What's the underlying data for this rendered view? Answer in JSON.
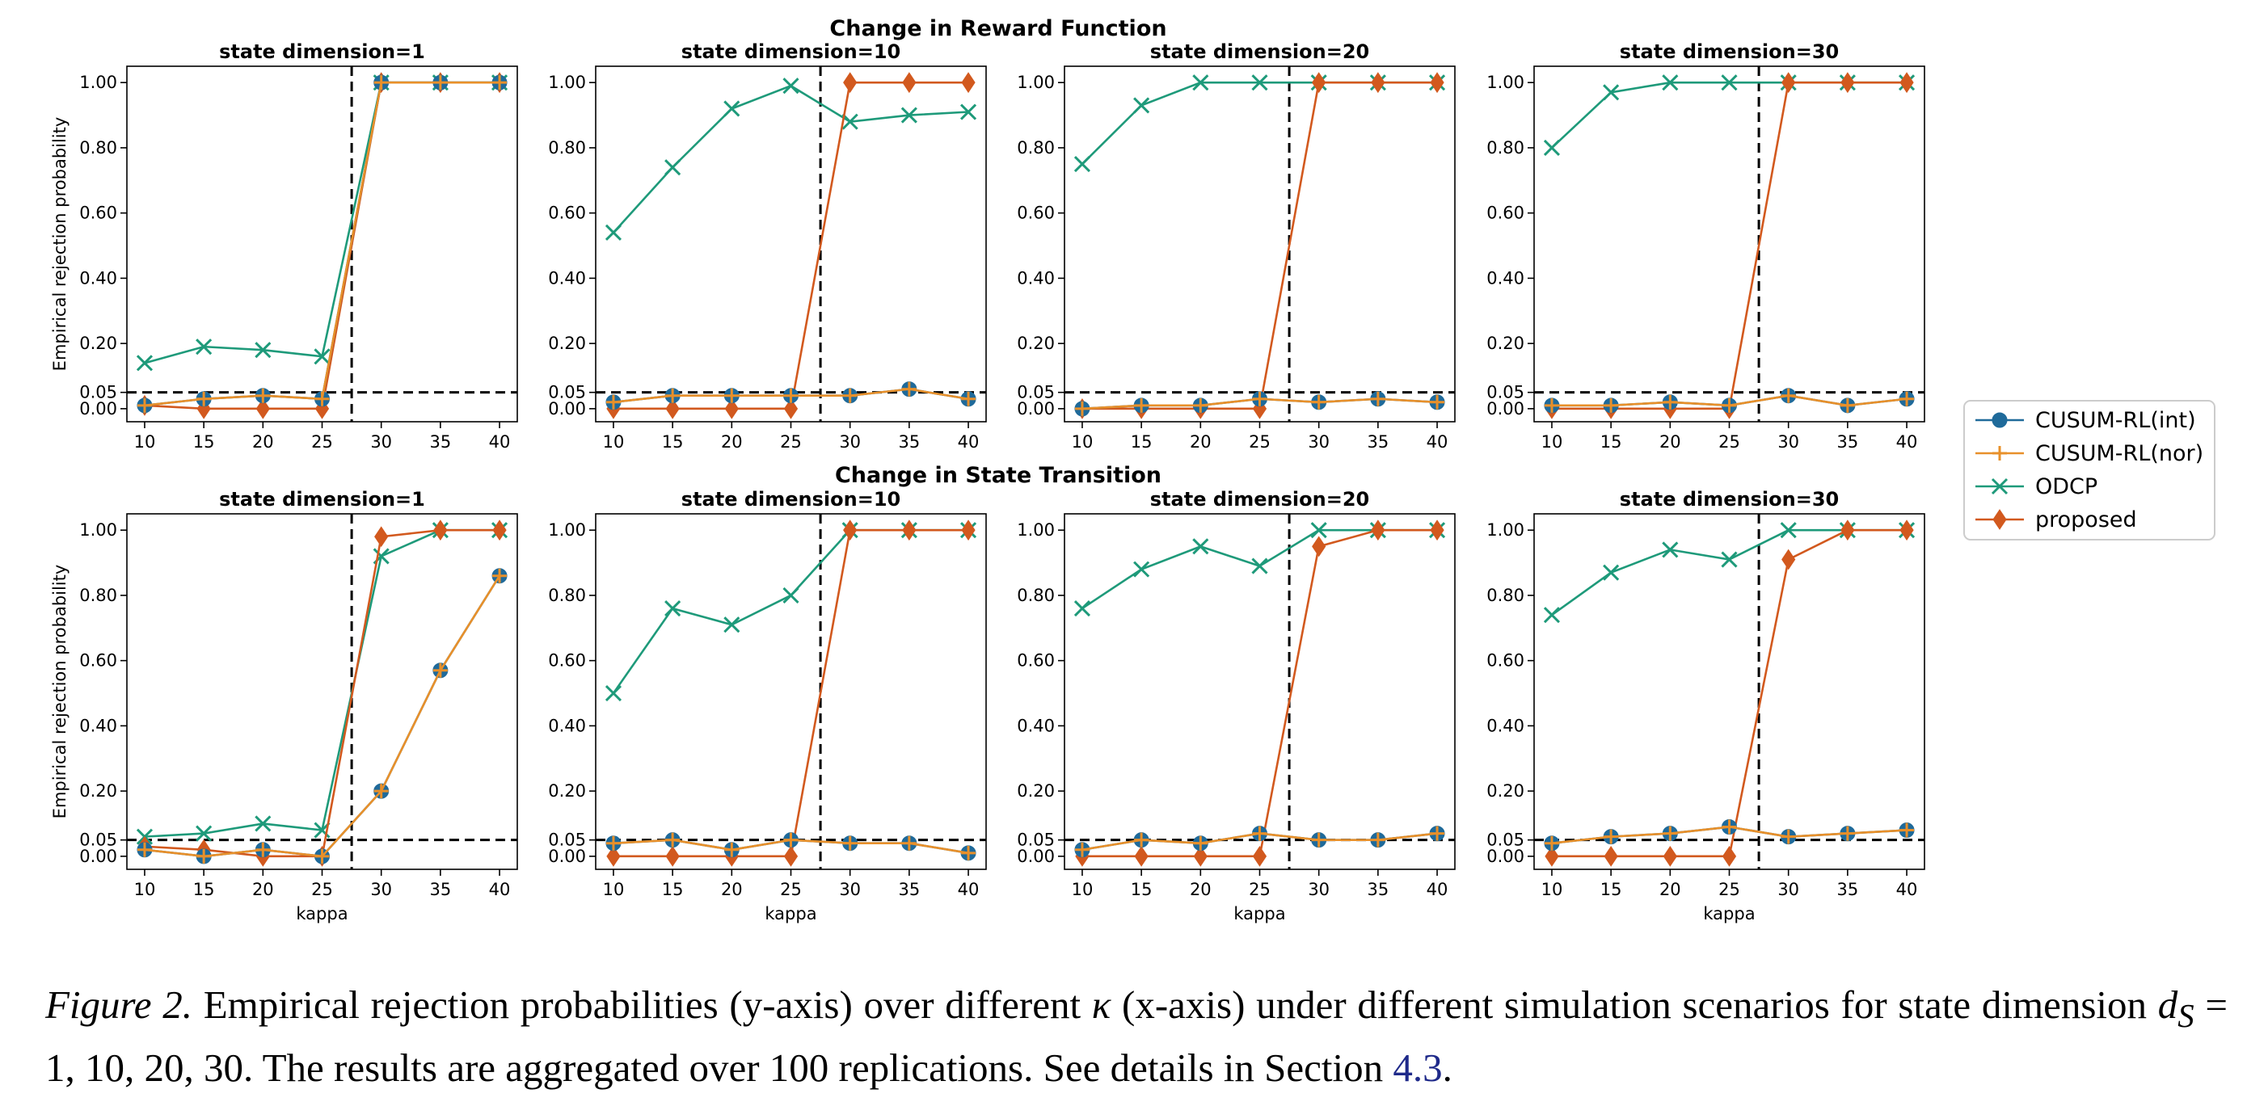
{
  "figure": {
    "row_titles": [
      "Change in Reward Function",
      "Change in State Transition"
    ],
    "ylabel": "Empirical rejection probability",
    "xlabel": "kappa"
  },
  "legend": {
    "placement": "center-right",
    "entries": [
      {
        "name": "CUSUM-RL(int)",
        "color": "#1f6a9a",
        "marker": "circle"
      },
      {
        "name": "CUSUM-RL(nor)",
        "color": "#e8902a",
        "marker": "plus"
      },
      {
        "name": "ODCP",
        "color": "#1e9a7a",
        "marker": "x"
      },
      {
        "name": "proposed",
        "color": "#d2591e",
        "marker": "diamond"
      }
    ]
  },
  "chart_data": [
    {
      "type": "line",
      "row": 0,
      "title": "state dimension=1",
      "x": [
        10,
        15,
        20,
        25,
        30,
        35,
        40
      ],
      "ylim": [
        -0.04,
        1.05
      ],
      "yticks": [
        0.0,
        0.05,
        0.2,
        0.4,
        0.6,
        0.8,
        1.0
      ],
      "ytick_labels": [
        "0.00",
        "0.05",
        "0.20",
        "0.40",
        "0.60",
        "0.80",
        "1.00"
      ],
      "hline": 0.05,
      "vline": 27.5,
      "grid": false,
      "series": [
        {
          "name": "CUSUM-RL(int)",
          "values": [
            0.01,
            0.03,
            0.04,
            0.03,
            1.0,
            1.0,
            1.0
          ]
        },
        {
          "name": "CUSUM-RL(nor)",
          "values": [
            0.01,
            0.03,
            0.04,
            0.03,
            1.0,
            1.0,
            1.0
          ]
        },
        {
          "name": "ODCP",
          "values": [
            0.14,
            0.19,
            0.18,
            0.16,
            1.0,
            1.0,
            1.0
          ]
        },
        {
          "name": "proposed",
          "values": [
            0.01,
            0.0,
            0.0,
            0.0,
            1.0,
            1.0,
            1.0
          ]
        }
      ]
    },
    {
      "type": "line",
      "row": 0,
      "title": "state dimension=10",
      "x": [
        10,
        15,
        20,
        25,
        30,
        35,
        40
      ],
      "ylim": [
        -0.04,
        1.05
      ],
      "yticks": [
        0.0,
        0.05,
        0.2,
        0.4,
        0.6,
        0.8,
        1.0
      ],
      "ytick_labels": [
        "0.00",
        "0.05",
        "0.20",
        "0.40",
        "0.60",
        "0.80",
        "1.00"
      ],
      "hline": 0.05,
      "vline": 27.5,
      "grid": false,
      "series": [
        {
          "name": "CUSUM-RL(int)",
          "values": [
            0.02,
            0.04,
            0.04,
            0.04,
            0.04,
            0.06,
            0.03
          ]
        },
        {
          "name": "CUSUM-RL(nor)",
          "values": [
            0.02,
            0.04,
            0.04,
            0.04,
            0.04,
            0.06,
            0.03
          ]
        },
        {
          "name": "ODCP",
          "values": [
            0.54,
            0.74,
            0.92,
            0.99,
            0.88,
            0.9,
            0.91
          ]
        },
        {
          "name": "proposed",
          "values": [
            0.0,
            0.0,
            0.0,
            0.0,
            1.0,
            1.0,
            1.0
          ]
        }
      ]
    },
    {
      "type": "line",
      "row": 0,
      "title": "state dimension=20",
      "x": [
        10,
        15,
        20,
        25,
        30,
        35,
        40
      ],
      "ylim": [
        -0.04,
        1.05
      ],
      "yticks": [
        0.0,
        0.05,
        0.2,
        0.4,
        0.6,
        0.8,
        1.0
      ],
      "ytick_labels": [
        "0.00",
        "0.05",
        "0.20",
        "0.40",
        "0.60",
        "0.80",
        "1.00"
      ],
      "hline": 0.05,
      "vline": 27.5,
      "grid": false,
      "series": [
        {
          "name": "CUSUM-RL(int)",
          "values": [
            0.0,
            0.01,
            0.01,
            0.03,
            0.02,
            0.03,
            0.02
          ]
        },
        {
          "name": "CUSUM-RL(nor)",
          "values": [
            0.0,
            0.01,
            0.01,
            0.03,
            0.02,
            0.03,
            0.02
          ]
        },
        {
          "name": "ODCP",
          "values": [
            0.75,
            0.93,
            1.0,
            1.0,
            1.0,
            1.0,
            1.0
          ]
        },
        {
          "name": "proposed",
          "values": [
            0.0,
            0.0,
            0.0,
            0.0,
            1.0,
            1.0,
            1.0
          ]
        }
      ]
    },
    {
      "type": "line",
      "row": 0,
      "title": "state dimension=30",
      "x": [
        10,
        15,
        20,
        25,
        30,
        35,
        40
      ],
      "ylim": [
        -0.04,
        1.05
      ],
      "yticks": [
        0.0,
        0.05,
        0.2,
        0.4,
        0.6,
        0.8,
        1.0
      ],
      "ytick_labels": [
        "0.00",
        "0.05",
        "0.20",
        "0.40",
        "0.60",
        "0.80",
        "1.00"
      ],
      "hline": 0.05,
      "vline": 27.5,
      "grid": false,
      "series": [
        {
          "name": "CUSUM-RL(int)",
          "values": [
            0.01,
            0.01,
            0.02,
            0.01,
            0.04,
            0.01,
            0.03
          ]
        },
        {
          "name": "CUSUM-RL(nor)",
          "values": [
            0.01,
            0.01,
            0.02,
            0.01,
            0.04,
            0.01,
            0.03
          ]
        },
        {
          "name": "ODCP",
          "values": [
            0.8,
            0.97,
            1.0,
            1.0,
            1.0,
            1.0,
            1.0
          ]
        },
        {
          "name": "proposed",
          "values": [
            0.0,
            0.0,
            0.0,
            0.0,
            1.0,
            1.0,
            1.0
          ]
        }
      ]
    },
    {
      "type": "line",
      "row": 1,
      "title": "state dimension=1",
      "x": [
        10,
        15,
        20,
        25,
        30,
        35,
        40
      ],
      "ylim": [
        -0.04,
        1.05
      ],
      "yticks": [
        0.0,
        0.05,
        0.2,
        0.4,
        0.6,
        0.8,
        1.0
      ],
      "ytick_labels": [
        "0.00",
        "0.05",
        "0.20",
        "0.40",
        "0.60",
        "0.80",
        "1.00"
      ],
      "hline": 0.05,
      "vline": 27.5,
      "grid": false,
      "series": [
        {
          "name": "CUSUM-RL(int)",
          "values": [
            0.02,
            0.0,
            0.02,
            0.0,
            0.2,
            0.57,
            0.86
          ]
        },
        {
          "name": "CUSUM-RL(nor)",
          "values": [
            0.02,
            0.0,
            0.02,
            0.0,
            0.2,
            0.57,
            0.86
          ]
        },
        {
          "name": "ODCP",
          "values": [
            0.06,
            0.07,
            0.1,
            0.08,
            0.92,
            1.0,
            1.0
          ]
        },
        {
          "name": "proposed",
          "values": [
            0.03,
            0.02,
            0.0,
            0.0,
            0.98,
            1.0,
            1.0
          ]
        }
      ]
    },
    {
      "type": "line",
      "row": 1,
      "title": "state dimension=10",
      "x": [
        10,
        15,
        20,
        25,
        30,
        35,
        40
      ],
      "ylim": [
        -0.04,
        1.05
      ],
      "yticks": [
        0.0,
        0.05,
        0.2,
        0.4,
        0.6,
        0.8,
        1.0
      ],
      "ytick_labels": [
        "0.00",
        "0.05",
        "0.20",
        "0.40",
        "0.60",
        "0.80",
        "1.00"
      ],
      "hline": 0.05,
      "vline": 27.5,
      "grid": false,
      "series": [
        {
          "name": "CUSUM-RL(int)",
          "values": [
            0.04,
            0.05,
            0.02,
            0.05,
            0.04,
            0.04,
            0.01
          ]
        },
        {
          "name": "CUSUM-RL(nor)",
          "values": [
            0.04,
            0.05,
            0.02,
            0.05,
            0.04,
            0.04,
            0.01
          ]
        },
        {
          "name": "ODCP",
          "values": [
            0.5,
            0.76,
            0.71,
            0.8,
            1.0,
            1.0,
            1.0
          ]
        },
        {
          "name": "proposed",
          "values": [
            0.0,
            0.0,
            0.0,
            0.0,
            1.0,
            1.0,
            1.0
          ]
        }
      ]
    },
    {
      "type": "line",
      "row": 1,
      "title": "state dimension=20",
      "x": [
        10,
        15,
        20,
        25,
        30,
        35,
        40
      ],
      "ylim": [
        -0.04,
        1.05
      ],
      "yticks": [
        0.0,
        0.05,
        0.2,
        0.4,
        0.6,
        0.8,
        1.0
      ],
      "ytick_labels": [
        "0.00",
        "0.05",
        "0.20",
        "0.40",
        "0.60",
        "0.80",
        "1.00"
      ],
      "hline": 0.05,
      "vline": 27.5,
      "grid": false,
      "series": [
        {
          "name": "CUSUM-RL(int)",
          "values": [
            0.02,
            0.05,
            0.04,
            0.07,
            0.05,
            0.05,
            0.07
          ]
        },
        {
          "name": "CUSUM-RL(nor)",
          "values": [
            0.02,
            0.05,
            0.04,
            0.07,
            0.05,
            0.05,
            0.07
          ]
        },
        {
          "name": "ODCP",
          "values": [
            0.76,
            0.88,
            0.95,
            0.89,
            1.0,
            1.0,
            1.0
          ]
        },
        {
          "name": "proposed",
          "values": [
            0.0,
            0.0,
            0.0,
            0.0,
            0.95,
            1.0,
            1.0
          ]
        }
      ]
    },
    {
      "type": "line",
      "row": 1,
      "title": "state dimension=30",
      "x": [
        10,
        15,
        20,
        25,
        30,
        35,
        40
      ],
      "ylim": [
        -0.04,
        1.05
      ],
      "yticks": [
        0.0,
        0.05,
        0.2,
        0.4,
        0.6,
        0.8,
        1.0
      ],
      "ytick_labels": [
        "0.00",
        "0.05",
        "0.20",
        "0.40",
        "0.60",
        "0.80",
        "1.00"
      ],
      "hline": 0.05,
      "vline": 27.5,
      "grid": false,
      "series": [
        {
          "name": "CUSUM-RL(int)",
          "values": [
            0.04,
            0.06,
            0.07,
            0.09,
            0.06,
            0.07,
            0.08
          ]
        },
        {
          "name": "CUSUM-RL(nor)",
          "values": [
            0.04,
            0.06,
            0.07,
            0.09,
            0.06,
            0.07,
            0.08
          ]
        },
        {
          "name": "ODCP",
          "values": [
            0.74,
            0.87,
            0.94,
            0.91,
            1.0,
            1.0,
            1.0
          ]
        },
        {
          "name": "proposed",
          "values": [
            0.0,
            0.0,
            0.0,
            0.0,
            0.91,
            1.0,
            1.0
          ]
        }
      ]
    }
  ],
  "caption": {
    "label": "Figure 2.",
    "text_1": " Empirical rejection probabilities (y-axis) over different ",
    "kappa": "κ",
    "text_2": " (x-axis) under different simulation scenarios for state dimension ",
    "d_symbol": "d",
    "d_sub": "S",
    "text_3": " = 1, 10, 20, 30. The results are aggregated over 100 replications. See details in Section ",
    "section_ref": "4.3",
    "text_4": "."
  }
}
